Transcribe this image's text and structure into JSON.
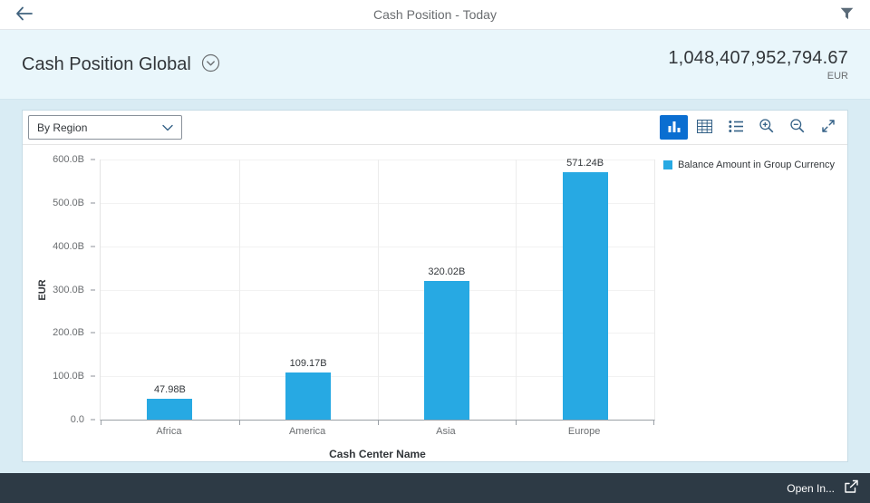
{
  "header": {
    "title": "Cash Position - Today"
  },
  "object_header": {
    "title": "Cash Position Global",
    "amount": "1,048,407,952,794.67",
    "currency": "EUR"
  },
  "toolbar": {
    "view_selector": "By Region",
    "buttons": [
      "bar-chart-view",
      "table-view",
      "legend-list",
      "zoom-in",
      "zoom-out",
      "fullscreen"
    ]
  },
  "icons": {
    "back": "back-arrow-icon",
    "filter": "filter-funnel-icon",
    "header_expand": "chevron-down-circle-icon",
    "chart": "bar-chart-icon",
    "table": "table-grid-icon",
    "list": "list-icon",
    "zoom_in": "zoom-in-icon",
    "zoom_out": "zoom-out-icon",
    "fullscreen": "expand-icon",
    "open_in": "share-arrow-icon"
  },
  "colors": {
    "accent_active": "#0a6ed1",
    "bar": "#27a9e3",
    "footer_bg": "#2d3a45",
    "subheader_bg": "#e9f6fb"
  },
  "chart_data": {
    "type": "bar",
    "title": "",
    "categories": [
      "Africa",
      "America",
      "Asia",
      "Europe"
    ],
    "values": [
      47.98,
      109.17,
      320.02,
      571.24
    ],
    "value_labels": [
      "47.98B",
      "109.17B",
      "320.02B",
      "571.24B"
    ],
    "series_name": "Balance Amount in Group Currency",
    "xlabel": "Cash Center Name",
    "ylabel": "EUR",
    "ylim": [
      0,
      600
    ],
    "yticks": [
      0,
      100,
      200,
      300,
      400,
      500,
      600
    ],
    "ytick_labels": [
      "0.0",
      "100.0B",
      "200.0B",
      "300.0B",
      "400.0B",
      "500.0B",
      "600.0B"
    ],
    "bar_color": "#27a9e3",
    "grid": true,
    "legend_position": "top-right"
  },
  "footer": {
    "open_in": "Open In..."
  }
}
